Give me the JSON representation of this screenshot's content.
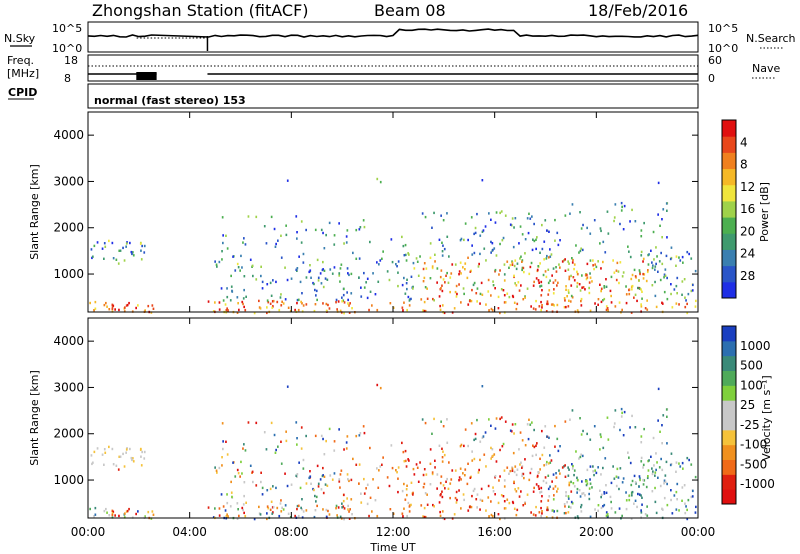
{
  "header": {
    "title": "Zhongshan Station (fitACF)",
    "beam": "Beam 08",
    "date": "18/Feb/2016"
  },
  "top_panels": {
    "nsky_label": "N.Sky",
    "nsky_ticks": [
      "10^5",
      "10^0"
    ],
    "nsearch_label": "N.Search",
    "nsearch_ticks": [
      "10^5",
      "10^0"
    ],
    "freq_label_1": "Freq.",
    "freq_label_2": "[MHz]",
    "freq_ticks": [
      "18",
      "8"
    ],
    "nave_label": "Nave",
    "nave_ticks": [
      "60",
      "0"
    ],
    "cpid_label": "CPID",
    "cpid_text": "normal (fast stereo) 153"
  },
  "colors": {
    "power_scale": [
      "#1f2fe6",
      "#2a55c8",
      "#3a7fb0",
      "#3f9a6e",
      "#4caf50",
      "#9fd24a",
      "#f0e53c",
      "#f5b826",
      "#f0801e",
      "#e8471b",
      "#e00f0f"
    ],
    "velocity_scale": [
      "#1a3fc0",
      "#2c6fb0",
      "#3a8a78",
      "#4faa5a",
      "#7fcf3c",
      "#c8c8c8",
      "#c8c8c8",
      "#f5c23a",
      "#f0901e",
      "#f06a18",
      "#e02010",
      "#e00f0f"
    ]
  },
  "chart_data": [
    {
      "type": "heatmap",
      "name": "power",
      "ylabel": "Slant Range [km]",
      "xlabel": "",
      "x_range_hours": [
        0,
        24
      ],
      "x_tick_labels": [
        "00:00",
        "04:00",
        "08:00",
        "12:00",
        "16:00",
        "20:00",
        "00:00"
      ],
      "ylim": [
        180,
        4500
      ],
      "y_ticks": [
        1000,
        2000,
        3000,
        4000
      ],
      "colorbar_label": "Power [dB]",
      "colorbar_range": [
        0,
        30
      ],
      "colorbar_ticks": [
        "4",
        "8",
        "12",
        "16",
        "20",
        "24",
        "28"
      ],
      "data_gap_hours": [
        2.7,
        4.7
      ]
    },
    {
      "type": "heatmap",
      "name": "velocity",
      "ylabel": "Slant Range [km]",
      "xlabel": "Time UT",
      "x_range_hours": [
        0,
        24
      ],
      "x_tick_labels": [
        "00:00",
        "04:00",
        "08:00",
        "12:00",
        "16:00",
        "20:00",
        "00:00"
      ],
      "ylim": [
        180,
        4500
      ],
      "y_ticks": [
        1000,
        2000,
        3000,
        4000
      ],
      "colorbar_label": "Velocity [m s⁻¹]",
      "colorbar_range": [
        -1200,
        1200
      ],
      "colorbar_ticks": [
        "1000",
        "500",
        "100",
        "25",
        "-25",
        "-100",
        "-500",
        "-1000"
      ],
      "data_gap_hours": [
        2.7,
        4.7
      ]
    }
  ]
}
